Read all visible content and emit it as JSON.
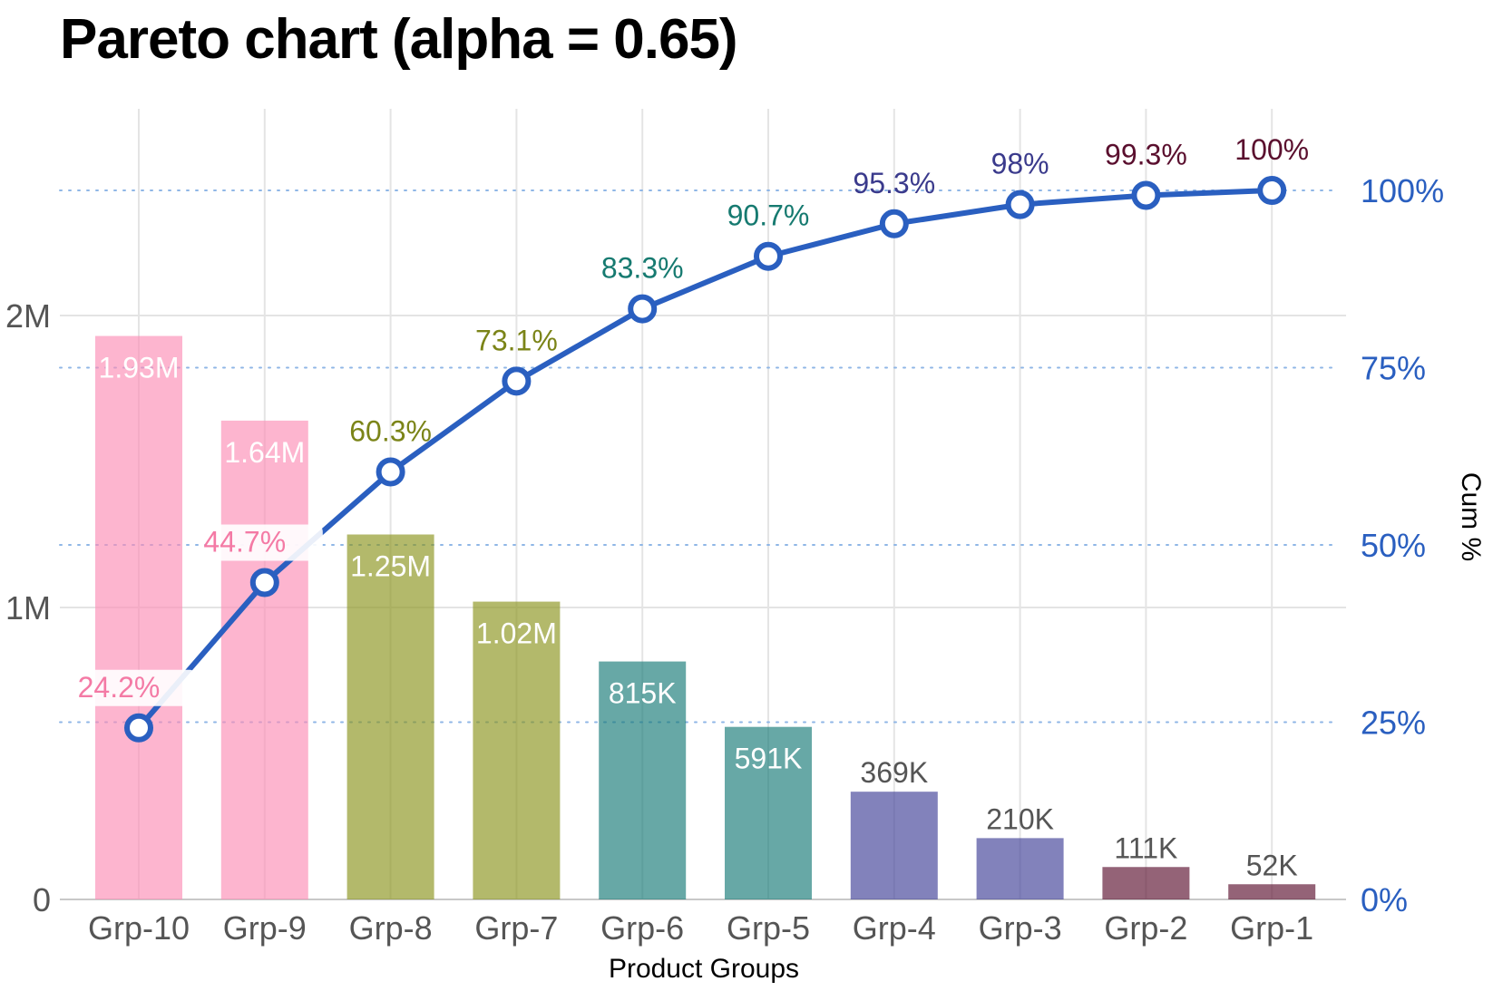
{
  "chart_data": {
    "type": "bar",
    "title": "Pareto chart (alpha = 0.65)",
    "xlabel": "Product Groups",
    "ylabel": "",
    "y2label": "Cum %",
    "ylim": [
      0,
      2700000
    ],
    "y2lim": [
      0,
      100
    ],
    "grid": true,
    "categories": [
      "Grp-10",
      "Grp-9",
      "Grp-8",
      "Grp-7",
      "Grp-6",
      "Grp-5",
      "Grp-4",
      "Grp-3",
      "Grp-2",
      "Grp-1"
    ],
    "values": [
      1930000,
      1640000,
      1250000,
      1020000,
      815000,
      591000,
      369000,
      210000,
      111000,
      52000
    ],
    "value_labels": [
      "1.93M",
      "1.64M",
      "1.25M",
      "1.02M",
      "815K",
      "591K",
      "369K",
      "210K",
      "111K",
      "52K"
    ],
    "bar_colors": [
      "#fc8db5",
      "#fc8db5",
      "#8a941c",
      "#8a941c",
      "#167a76",
      "#167a76",
      "#3f3f96",
      "#3f3f96",
      "#5a0f2e",
      "#5a0f2e"
    ],
    "bar_opacity": 0.65,
    "cumulative": {
      "values": [
        24.2,
        44.7,
        60.3,
        73.1,
        83.3,
        90.7,
        95.3,
        98,
        99.3,
        100
      ],
      "labels": [
        "24.2%",
        "44.7%",
        "60.3%",
        "73.1%",
        "83.3%",
        "90.7%",
        "95.3%",
        "98%",
        "99.3%",
        "100%"
      ],
      "label_colors": [
        "#f47aa5",
        "#f47aa5",
        "#7b8418",
        "#7b8418",
        "#167a70",
        "#167a70",
        "#3a3a8c",
        "#3a3a8c",
        "#5a0f2e",
        "#5a0f2e"
      ],
      "line_color": "#2a5fc0"
    },
    "y_ticks": [
      {
        "value": 0,
        "label": "0"
      },
      {
        "value": 1000000,
        "label": "1M"
      },
      {
        "value": 2000000,
        "label": "2M"
      }
    ],
    "y2_ticks": [
      {
        "value": 0,
        "label": "0%"
      },
      {
        "value": 25,
        "label": "25%"
      },
      {
        "value": 50,
        "label": "50%"
      },
      {
        "value": 75,
        "label": "75%"
      },
      {
        "value": 100,
        "label": "100%"
      }
    ],
    "y2_tick_color": "#2a5fc0",
    "y2_grid_color": "#8fb6e6"
  }
}
